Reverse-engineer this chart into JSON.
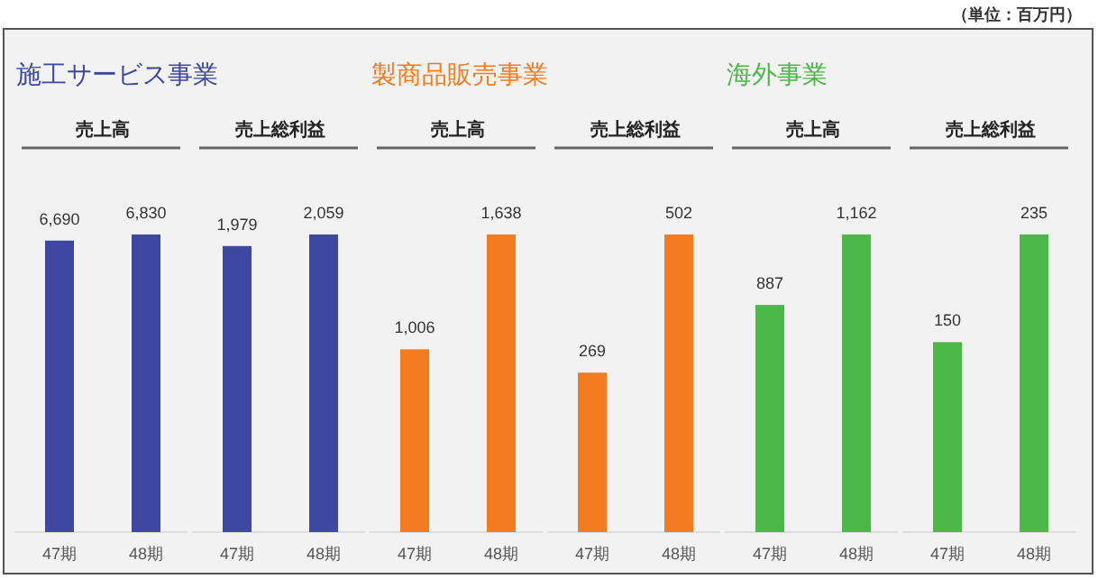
{
  "chart_data": [
    {
      "type": "bar",
      "subtitle": "施工サービス事業",
      "title": "売上高",
      "categories": [
        "47期",
        "48期"
      ],
      "values": [
        6690,
        6830
      ],
      "value_labels": [
        "6,690",
        "6,830"
      ],
      "color": "#3f48a0",
      "annotations": [
        "（単位：百万円）"
      ]
    },
    {
      "type": "bar",
      "title": "売上総利益",
      "categories": [
        "47期",
        "48期"
      ],
      "values": [
        1979,
        2059
      ],
      "value_labels": [
        "1,979",
        "2,059"
      ],
      "color": "#3f48a0"
    },
    {
      "type": "bar",
      "subtitle": "製商品販売事業",
      "title": "売上高",
      "categories": [
        "47期",
        "48期"
      ],
      "values": [
        1006,
        1638
      ],
      "value_labels": [
        "1,006",
        "1,638"
      ],
      "color": "#f47b20"
    },
    {
      "type": "bar",
      "title": "売上総利益",
      "categories": [
        "47期",
        "48期"
      ],
      "values": [
        269,
        502
      ],
      "value_labels": [
        "269",
        "502"
      ],
      "color": "#f47b20"
    },
    {
      "type": "bar",
      "subtitle": "海外事業",
      "title": "売上高",
      "categories": [
        "47期",
        "48期"
      ],
      "values": [
        887,
        1162
      ],
      "value_labels": [
        "887",
        "1,162"
      ],
      "color": "#4cb848"
    },
    {
      "type": "bar",
      "title": "売上総利益",
      "categories": [
        "47期",
        "48期"
      ],
      "values": [
        150,
        235
      ],
      "value_labels": [
        "150",
        "235"
      ],
      "color": "#4cb848"
    }
  ]
}
